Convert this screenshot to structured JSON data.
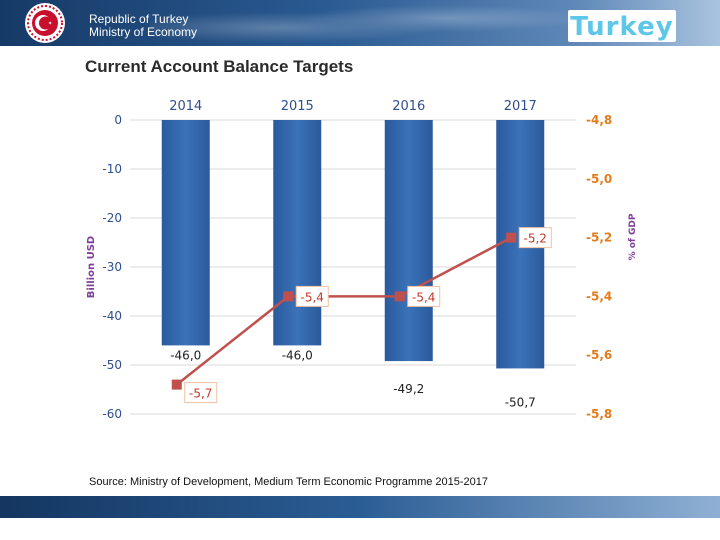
{
  "header": {
    "line1": "Republic of Turkey",
    "line2": "Ministry of Economy",
    "brand": "Turkey"
  },
  "page_title": "Current Account Balance Targets",
  "source": "Source: Ministry of Development, Medium Term Economic Programme 2015-2017",
  "colors": {
    "bar": "#3b72b8",
    "line": "#c0504d",
    "axis_label": "#7f3f9a",
    "right_axis_text": "#e37c1c",
    "left_axis_text": "#2f4f8f"
  },
  "chart_data": {
    "type": "bar",
    "title": "Current Account Balance Targets",
    "categories": [
      "2014",
      "2015",
      "2016",
      "2017"
    ],
    "series": [
      {
        "name": "Billion USD",
        "axis": "left",
        "type": "bar",
        "values": [
          -46.0,
          -46.0,
          -49.2,
          -50.7
        ],
        "labels": [
          "-46,0",
          "-46,0",
          "-49,2",
          "-50,7"
        ]
      },
      {
        "name": "% of GDP",
        "axis": "right",
        "type": "line",
        "values": [
          -5.7,
          -5.4,
          -5.4,
          -5.2
        ],
        "labels": [
          "-5,7",
          "-5,4",
          "-5,4",
          "-5,2"
        ]
      }
    ],
    "y_left": {
      "label": "Billion USD",
      "range": [
        -60,
        0
      ],
      "ticks": [
        0,
        -10,
        -20,
        -30,
        -40,
        -50,
        -60
      ],
      "tick_labels": [
        "0",
        "-10",
        "-20",
        "-30",
        "-40",
        "-50",
        "-60"
      ]
    },
    "y_right": {
      "label": "% of GDP",
      "range": [
        -5.8,
        -4.8
      ],
      "ticks": [
        -4.8,
        -5.0,
        -5.2,
        -5.4,
        -5.6,
        -5.8
      ],
      "tick_labels": [
        "-4,8",
        "-5,0",
        "-5,2",
        "-5,4",
        "-5,6",
        "-5,8"
      ]
    },
    "grid": true,
    "legend": "none"
  }
}
